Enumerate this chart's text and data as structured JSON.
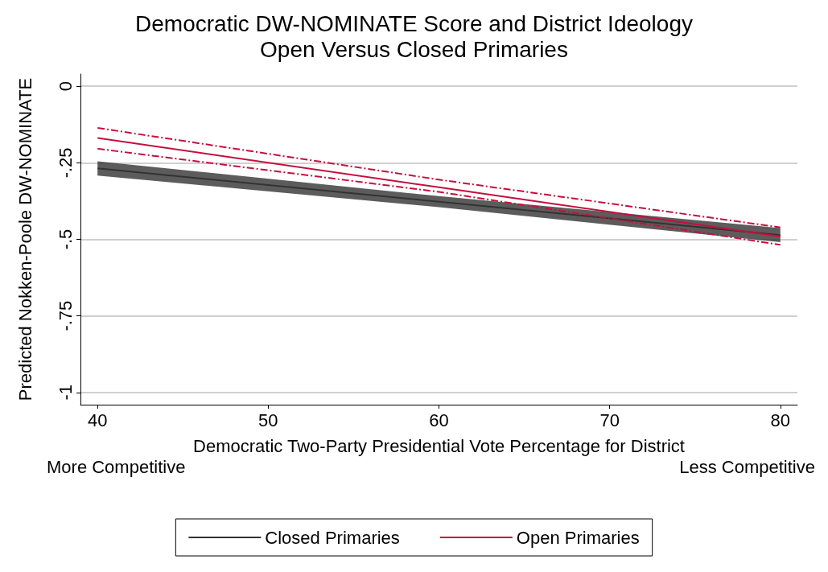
{
  "chart_data": {
    "type": "line",
    "title": "Democratic DW-NOMINATE Score and District Ideology\nOpen Versus Closed Primaries",
    "xlabel": "Democratic Two-Party Presidential Vote Percentage for District",
    "ylabel": "Predicted Nokken-Poole DW-NOMINATE",
    "annotations": [
      "More Competitive",
      "Less Competitive"
    ],
    "x": [
      40,
      60,
      80
    ],
    "series": [
      {
        "name": "Closed Primaries",
        "color": "#333333",
        "values": [
          -0.268,
          -0.377,
          -0.486
        ],
        "lower": [
          -0.292,
          -0.395,
          -0.509
        ],
        "upper": [
          -0.245,
          -0.359,
          -0.463
        ]
      },
      {
        "name": "Open Primaries",
        "color": "#c4103e",
        "values": [
          -0.169,
          -0.33,
          -0.491
        ]
      },
      {
        "color": "#c4103e",
        "values": [
          -0.204,
          -0.345,
          -0.518
        ],
        "line_style": "dashed"
      },
      {
        "color": "#c4103e",
        "values": [
          -0.136,
          -0.305,
          -0.461
        ],
        "line_style": "dashed"
      }
    ],
    "xlim": [
      39,
      81
    ],
    "xticks": [
      40,
      50,
      60,
      70,
      80
    ],
    "ylim": [
      -1.04,
      0.04
    ],
    "yticks": [
      0,
      {
        "value": -0.25,
        "label": "-.25"
      },
      {
        "value": -0.5,
        "label": "-.5"
      },
      {
        "value": -0.75,
        "label": "-.75"
      },
      {
        "value": -1,
        "label": "-1"
      }
    ],
    "grid": "y",
    "legend": "bottom",
    "marker": "none",
    "line_style": "solid"
  }
}
